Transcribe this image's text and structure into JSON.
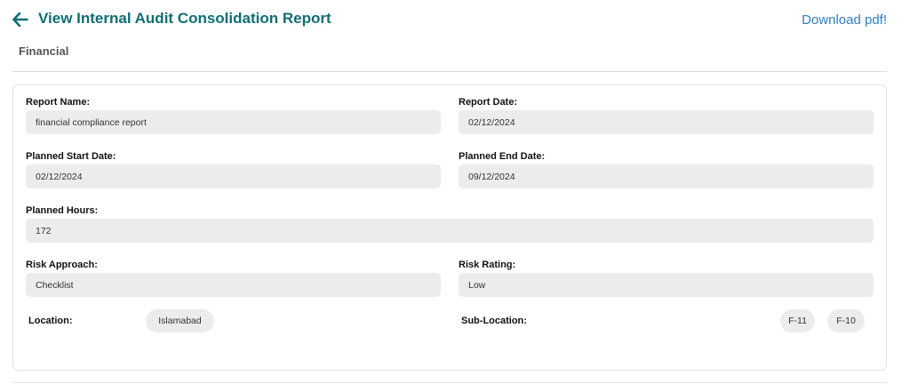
{
  "header": {
    "title": "View Internal Audit Consolidation Report",
    "download_label": "Download pdf!",
    "back_icon": "arrow-left-icon",
    "accent_color": "#0f6e73",
    "link_color": "#2f7fbf"
  },
  "section": {
    "title": "Financial"
  },
  "form": {
    "report_name": {
      "label": "Report Name:",
      "value": "financial compliance report"
    },
    "report_date": {
      "label": "Report Date:",
      "value": "02/12/2024"
    },
    "planned_start_date": {
      "label": "Planned Start Date:",
      "value": "02/12/2024"
    },
    "planned_end_date": {
      "label": "Planned End Date:",
      "value": "09/12/2024"
    },
    "planned_hours": {
      "label": "Planned Hours:",
      "value": "172"
    },
    "risk_approach": {
      "label": "Risk Approach:",
      "value": "Checklist"
    },
    "risk_rating": {
      "label": "Risk Rating:",
      "value": "Low"
    },
    "location": {
      "label": "Location:",
      "chips": [
        "Islamabad"
      ]
    },
    "sub_location": {
      "label": "Sub-Location:",
      "chips": [
        "F-11",
        "F-10"
      ]
    }
  }
}
